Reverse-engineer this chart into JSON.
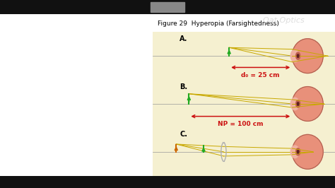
{
  "title": "Figure 29  Hyperopia (Farsightedness)",
  "title_fontsize": 6.5,
  "bg_yellow": "#f5f0d0",
  "bg_white": "#ffffff",
  "bg_top_bar": "#111111",
  "bg_bottom_bar": "#111111",
  "panel_labels": [
    "A.",
    "B.",
    "C."
  ],
  "panel_label_fontsize": 7,
  "eye_fill": "#e8907a",
  "eye_edge": "#b06050",
  "cornea_fill": "#f0b0a0",
  "iris_fill": "#c06050",
  "pupil_fill": "#602020",
  "arrow_red": "#cc1111",
  "label_A": "d₀ = 25 cm",
  "label_B": "NP = 100 cm",
  "label_fontsize": 6.5,
  "ray_color": "#c8a800",
  "obj_green": "#22aa22",
  "obj_orange": "#cc6600",
  "lens_color": "#b0b0b0",
  "axis_color": "#999999",
  "watermark": "Oat Optics",
  "fig_width": 4.74,
  "fig_height": 2.66,
  "dpi": 100
}
